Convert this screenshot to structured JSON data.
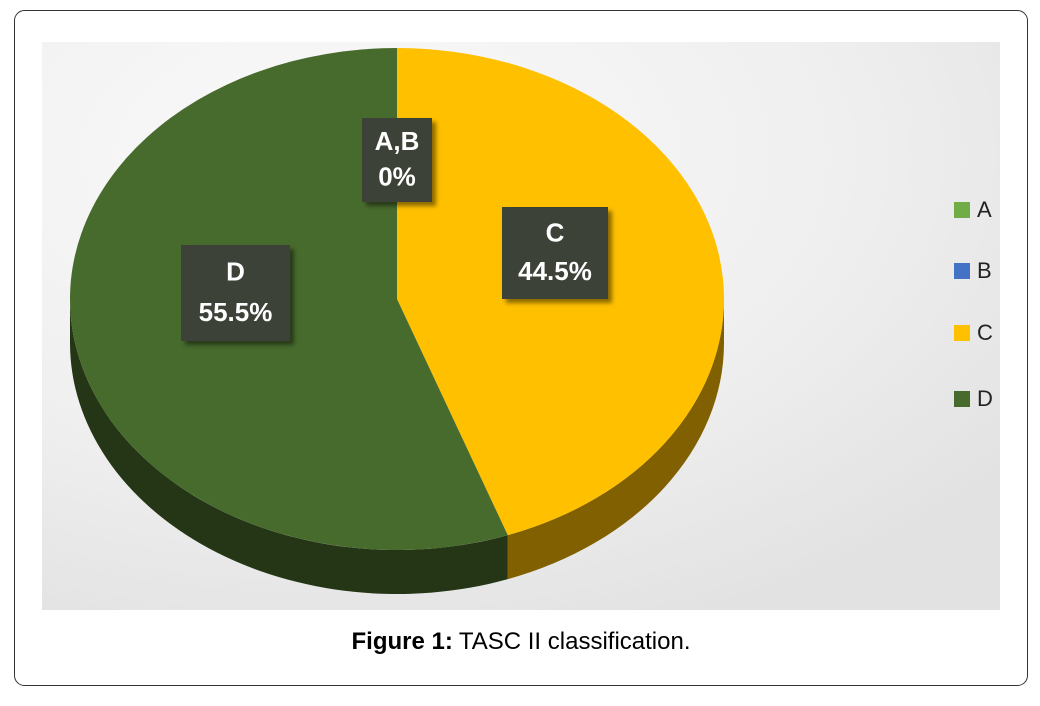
{
  "chart_data": {
    "type": "pie",
    "categories": [
      "A",
      "B",
      "C",
      "D"
    ],
    "values": [
      0,
      0,
      44.5,
      55.5
    ],
    "colors": [
      "#70ad47",
      "#4472c4",
      "#ffc000",
      "#476b2c"
    ],
    "callouts": [
      {
        "text": "A,B",
        "label": "0%"
      },
      {
        "text": "C",
        "label": "44.5%"
      },
      {
        "text": "D",
        "label": "55.5%"
      }
    ],
    "legend": "right",
    "caption": {
      "label": "Figure 1:",
      "text": "TASC II classification."
    }
  }
}
